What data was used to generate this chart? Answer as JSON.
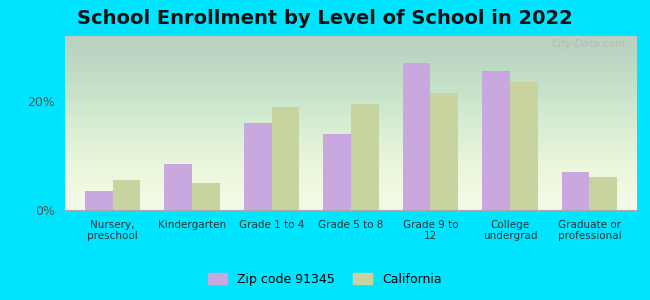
{
  "title": "School Enrollment by Level of School in 2022",
  "categories": [
    "Nursery,\npreschool",
    "Kindergarten",
    "Grade 1 to 4",
    "Grade 5 to 8",
    "Grade 9 to\n12",
    "College\nundergrad",
    "Graduate or\nprofessional"
  ],
  "zip_values": [
    3.5,
    8.5,
    16.0,
    14.0,
    27.0,
    25.5,
    7.0
  ],
  "ca_values": [
    5.5,
    5.0,
    19.0,
    19.5,
    21.5,
    23.5,
    6.0
  ],
  "zip_color": "#c9a8e0",
  "ca_color": "#c8d4a0",
  "background_outer": "#00e5ff",
  "title_fontsize": 14,
  "yticks": [
    0,
    20
  ],
  "ylim": [
    0,
    32
  ],
  "legend_zip_label": "Zip code 91345",
  "legend_ca_label": "California",
  "watermark": "City-Data.com",
  "bar_width": 0.35
}
